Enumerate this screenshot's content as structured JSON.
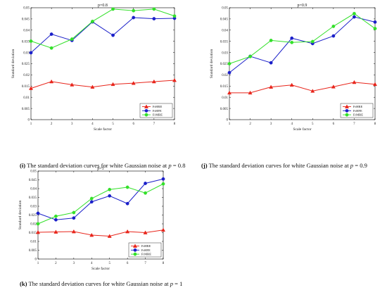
{
  "colors": {
    "FrHRE": "#e8251b",
    "FrHFE": "#1a1fc9",
    "FrMRE": "#33e02a"
  },
  "chart_data": [
    {
      "type": "line",
      "title": "p=0.8",
      "xlabel": "Scale factor",
      "ylabel": "Standard deviation",
      "x": [
        1,
        2,
        3,
        4,
        5,
        6,
        7,
        8
      ],
      "xlim": [
        1,
        8
      ],
      "ylim": [
        0,
        0.05
      ],
      "yticks": [
        "0",
        "0.005",
        "0.01",
        "0.015",
        "0.02",
        "0.025",
        "0.03",
        "0.035",
        "0.04",
        "0.045",
        "0.05"
      ],
      "grid": false,
      "legend_position": "bottom-right",
      "series": [
        {
          "name": "FrHRE",
          "values": [
            0.014,
            0.017,
            0.0156,
            0.0146,
            0.0158,
            0.0163,
            0.017,
            0.0176
          ]
        },
        {
          "name": "FrHFE",
          "values": [
            0.0299,
            0.0382,
            0.0354,
            0.0437,
            0.0377,
            0.0456,
            0.0451,
            0.0453
          ]
        },
        {
          "name": "FrMRE",
          "values": [
            0.0351,
            0.032,
            0.036,
            0.0439,
            0.0494,
            0.0487,
            0.0494,
            0.0463
          ]
        }
      ],
      "caption": {
        "label": "(i)",
        "text": "The standard deviation curves for white Gaussian noise at ",
        "var": "p",
        "value": " = 0.8"
      }
    },
    {
      "type": "line",
      "title": "p=0.9",
      "xlabel": "Scale factor",
      "ylabel": "Standard deviation",
      "x": [
        1,
        2,
        3,
        4,
        5,
        6,
        7,
        8
      ],
      "xlim": [
        1,
        8
      ],
      "ylim": [
        0,
        0.05
      ],
      "yticks": [
        "0",
        "0.005",
        "0.01",
        "0.015",
        "0.02",
        "0.025",
        "0.03",
        "0.035",
        "0.04",
        "0.045",
        "0.05"
      ],
      "grid": false,
      "legend_position": "bottom-right",
      "series": [
        {
          "name": "FrHRE",
          "values": [
            0.012,
            0.012,
            0.0146,
            0.0155,
            0.0128,
            0.0147,
            0.0167,
            0.0158
          ]
        },
        {
          "name": "FrHFE",
          "values": [
            0.021,
            0.0283,
            0.0254,
            0.0364,
            0.034,
            0.0374,
            0.0459,
            0.0436
          ]
        },
        {
          "name": "FrMRE",
          "values": [
            0.025,
            0.0282,
            0.0354,
            0.0345,
            0.0349,
            0.0417,
            0.0474,
            0.0407
          ]
        }
      ],
      "caption": {
        "label": "(j)",
        "text": "The standard deviation curves for white Gaussian noise at ",
        "var": "p",
        "value": " = 0.9"
      }
    },
    {
      "type": "line",
      "title": "p=1",
      "xlabel": "Scale factor",
      "ylabel": "Standard deviation",
      "x": [
        1,
        2,
        3,
        4,
        5,
        6,
        7,
        8
      ],
      "xlim": [
        1,
        8
      ],
      "ylim": [
        0,
        0.05
      ],
      "yticks": [
        "0",
        "0.005",
        "0.01",
        "0.015",
        "0.02",
        "0.025",
        "0.03",
        "0.035",
        "0.04",
        "0.045",
        "0.05"
      ],
      "grid": false,
      "legend_position": "bottom-right",
      "series": [
        {
          "name": "FrHRE",
          "values": [
            0.0152,
            0.0154,
            0.0156,
            0.0136,
            0.013,
            0.0156,
            0.015,
            0.0165
          ]
        },
        {
          "name": "FrHFE",
          "values": [
            0.026,
            0.0223,
            0.0233,
            0.0325,
            0.0359,
            0.0315,
            0.043,
            0.0455
          ]
        },
        {
          "name": "FrMRE",
          "values": [
            0.02,
            0.0243,
            0.0264,
            0.0344,
            0.0395,
            0.0408,
            0.0375,
            0.0427
          ]
        }
      ],
      "caption": {
        "label": "(k)",
        "text": "The standard deviation curves for white Gaussian noise at ",
        "var": "p",
        "value": " = 1"
      }
    }
  ]
}
